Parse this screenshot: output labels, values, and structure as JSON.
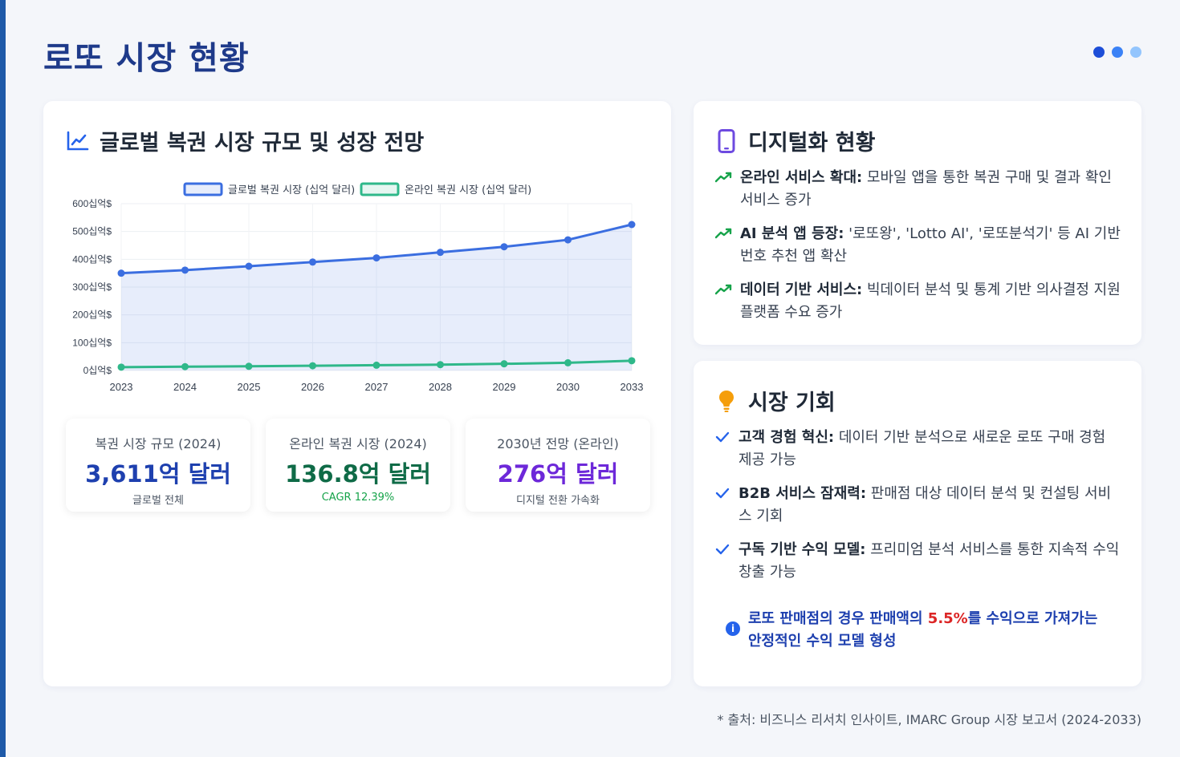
{
  "page": {
    "title": "로또 시장 현황",
    "source": "* 출처: 비즈니스 리서치 인사이트, IMARC Group 시장 보고서 (2024-2033)",
    "dot_colors": [
      "#1d4ed8",
      "#3b82f6",
      "#93c5fd"
    ]
  },
  "main_card": {
    "title": "글로벌 복권 시장 규모 및 성장 전망",
    "icon": "chart-line-icon"
  },
  "chart_data": {
    "type": "line",
    "title": "",
    "categories": [
      "2023",
      "2024",
      "2025",
      "2026",
      "2027",
      "2028",
      "2029",
      "2030",
      "2033"
    ],
    "series": [
      {
        "name": "글로벌 복권 시장 (십억 달러)",
        "values": [
          350,
          361,
          375,
          390,
          405,
          425,
          445,
          470,
          525
        ],
        "color": "#3b6ee0",
        "fill": "rgba(59,110,224,0.12)"
      },
      {
        "name": "온라인 복권 시장 (십억 달러)",
        "values": [
          12,
          13.7,
          15,
          17,
          19,
          21,
          24,
          27.6,
          35
        ],
        "color": "#2fb88a"
      }
    ],
    "y_ticks": [
      "0십억$",
      "100십억$",
      "200십억$",
      "300십억$",
      "400십억$",
      "500십억$",
      "600십억$"
    ],
    "ylim": [
      0,
      600
    ],
    "legend": "top"
  },
  "stats": [
    {
      "label": "복권 시장 규모 (2024)",
      "value": "3,611억 달러",
      "sub": "글로벌 전체",
      "color": "#1e40af",
      "sub_color": "#4b5563"
    },
    {
      "label": "온라인 복권 시장 (2024)",
      "value": "136.8억 달러",
      "sub": "CAGR 12.39%",
      "color": "#0f6b47",
      "sub_color": "#16a34a"
    },
    {
      "label": "2030년 전망 (온라인)",
      "value": "276억 달러",
      "sub": "디지털 전환 가속화",
      "color": "#6d28d9",
      "sub_color": "#4b5563"
    }
  ],
  "digital": {
    "title": "디지털화 현황",
    "items": [
      {
        "bold": "온라인 서비스 확대:",
        "text": " 모바일 앱을 통한 복권 구매 및 결과 확인 서비스 증가"
      },
      {
        "bold": "AI 분석 앱 등장:",
        "text": " '로또왕', 'Lotto AI', '로또분석기' 등 AI 기반 번호 추천 앱 확산"
      },
      {
        "bold": "데이터 기반 서비스:",
        "text": " 빅데이터 분석 및 통계 기반 의사결정 지원 플랫폼 수요 증가"
      }
    ]
  },
  "opportunity": {
    "title": "시장 기회",
    "items": [
      {
        "bold": "고객 경험 혁신:",
        "text": " 데이터 기반 분석으로 새로운 로또 구매 경험 제공 가능"
      },
      {
        "bold": "B2B 서비스 잠재력:",
        "text": " 판매점 대상 데이터 분석 및 컨설팅 서비스 기회"
      },
      {
        "bold": "구독 기반 수익 모델:",
        "text": " 프리미엄 분석 서비스를 통한 지속적 수익 창출 가능"
      }
    ],
    "note_pre": "로또 판매점의 경우 판매액의 ",
    "note_highlight": "5.5%",
    "note_post": "를 수익으로 가져가는 안정적인 수익 모델 형성"
  }
}
